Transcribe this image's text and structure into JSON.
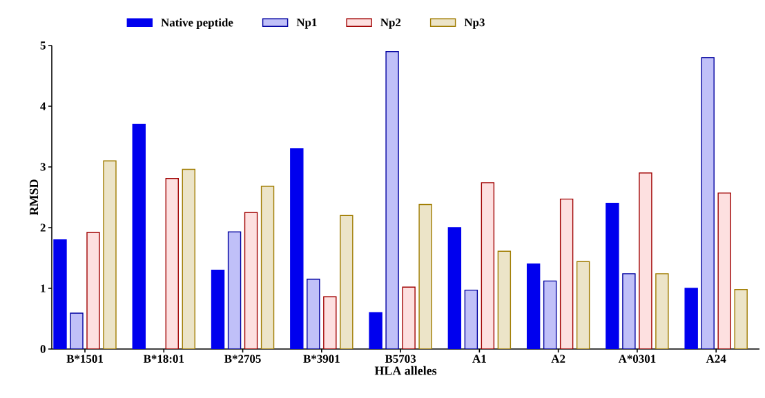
{
  "chart_data": {
    "type": "bar",
    "xlabel": "HLA alleles",
    "ylabel": "RMSD",
    "categories": [
      "B*1501",
      "B*18:01",
      "B*2705",
      "B*3901",
      "B5703",
      "A1",
      "A2",
      "A*0301",
      "A24"
    ],
    "series": [
      {
        "name": "Native peptide",
        "color": "#0000ee",
        "values": [
          1.8,
          3.7,
          1.3,
          3.3,
          0.6,
          2.0,
          1.4,
          2.4,
          1.0
        ]
      },
      {
        "name": "Np1",
        "color": "#c0c0f8",
        "values": [
          0.59,
          null,
          1.93,
          1.15,
          4.9,
          0.97,
          1.12,
          1.24,
          4.8
        ]
      },
      {
        "name": "Np2",
        "color": "#fde0e0",
        "values": [
          1.92,
          2.81,
          2.25,
          0.86,
          1.02,
          2.74,
          2.47,
          2.9,
          2.57
        ]
      },
      {
        "name": "Np3",
        "color": "#ece4c8",
        "values": [
          3.1,
          2.96,
          2.68,
          2.2,
          2.38,
          1.61,
          1.44,
          1.24,
          0.98
        ]
      }
    ],
    "ylim": [
      0,
      5
    ],
    "yticks": [
      0,
      1,
      2,
      3,
      4,
      5
    ],
    "legend": "top",
    "grid": false
  }
}
